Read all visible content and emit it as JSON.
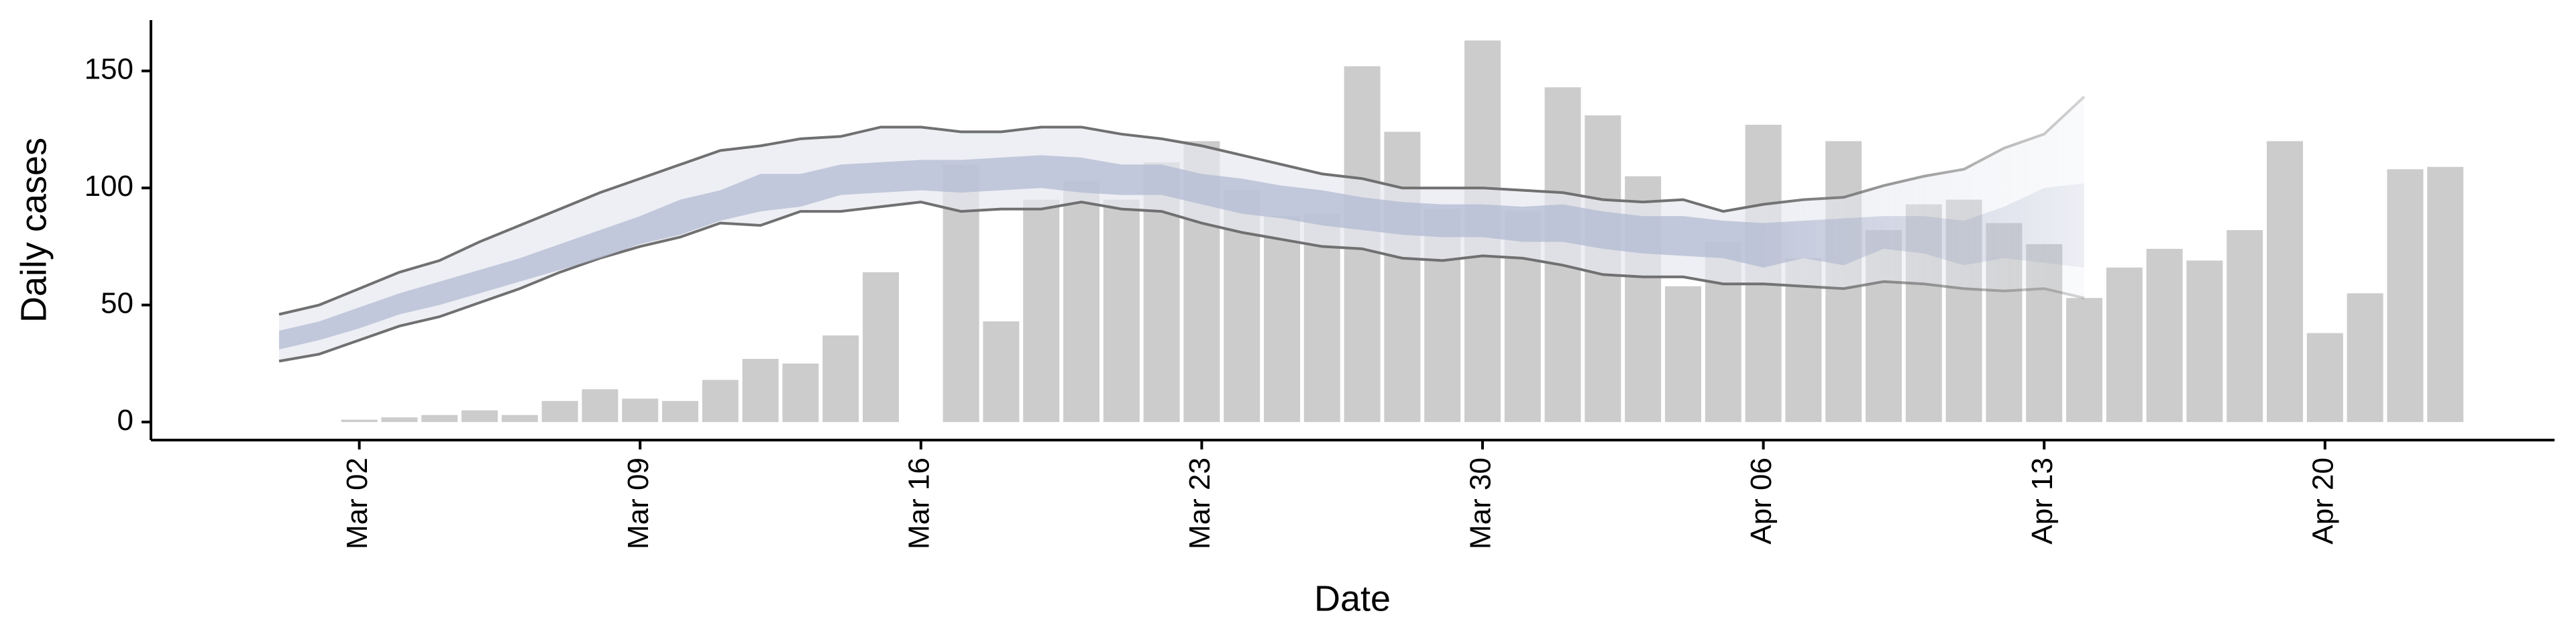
{
  "chart_data": {
    "type": "bar",
    "x_label": "Date",
    "y_label": "Daily cases",
    "categories": [
      null,
      null,
      "Mar 02",
      null,
      null,
      null,
      null,
      null,
      null,
      "Mar 09",
      null,
      null,
      null,
      null,
      null,
      null,
      "Mar 16",
      null,
      null,
      null,
      null,
      null,
      null,
      "Mar 23",
      null,
      null,
      null,
      null,
      null,
      null,
      "Mar 30",
      null,
      null,
      null,
      null,
      null,
      null,
      "Apr 06",
      null,
      null,
      null,
      null,
      null,
      null,
      "Apr 13",
      null,
      null,
      null,
      null,
      null,
      null,
      "Apr 20",
      null,
      null,
      null
    ],
    "series": [
      {
        "color": "#cccccc",
        "values": [
          null,
          null,
          1,
          2,
          3,
          5,
          3,
          9,
          14,
          10,
          9,
          18,
          27,
          25,
          37,
          64,
          null,
          110,
          43,
          95,
          103,
          95,
          111,
          120,
          99,
          88,
          89,
          152,
          124,
          91,
          163,
          90,
          143,
          131,
          105,
          58,
          77,
          127,
          70,
          120,
          82,
          93,
          95,
          85,
          76,
          53,
          66,
          74,
          69,
          82,
          120,
          38,
          55,
          108,
          109
        ]
      }
    ],
    "bands": [
      {
        "color": "#e6e8f0",
        "edge_color": "#707070",
        "upper": [
          46,
          50,
          57,
          64,
          69,
          77,
          84,
          91,
          98,
          104,
          110,
          116,
          118,
          121,
          122,
          126,
          126,
          124,
          124,
          126,
          126,
          123,
          121,
          118,
          114,
          110,
          106,
          104,
          100,
          100,
          100,
          99,
          98,
          95,
          94,
          95,
          90,
          93,
          95,
          96,
          101,
          105,
          108,
          117,
          123,
          139
        ],
        "lower": [
          26,
          29,
          35,
          41,
          45,
          51,
          57,
          64,
          70,
          75,
          79,
          85,
          84,
          90,
          90,
          92,
          94,
          90,
          91,
          91,
          94,
          91,
          90,
          85,
          81,
          78,
          75,
          74,
          70,
          69,
          71,
          70,
          67,
          63,
          62,
          62,
          59,
          59,
          58,
          57,
          60,
          59,
          57,
          56,
          57,
          53
        ]
      },
      {
        "color": "#b4bbd3",
        "upper": [
          39,
          43,
          49,
          55,
          60,
          65,
          70,
          76,
          82,
          88,
          95,
          99,
          106,
          106,
          110,
          111,
          112,
          112,
          113,
          114,
          113,
          110,
          110,
          106,
          104,
          101,
          99,
          96,
          94,
          93,
          93,
          92,
          93,
          90,
          88,
          88,
          86,
          85,
          86,
          87,
          88,
          88,
          86,
          92,
          100,
          102
        ],
        "lower": [
          31,
          35,
          40,
          46,
          50,
          55,
          60,
          65,
          70,
          76,
          80,
          86,
          90,
          92,
          97,
          98,
          99,
          98,
          99,
          100,
          98,
          97,
          97,
          93,
          89,
          87,
          84,
          82,
          80,
          79,
          79,
          77,
          77,
          74,
          72,
          71,
          70,
          66,
          70,
          67,
          74,
          72,
          67,
          70,
          68,
          66
        ]
      }
    ],
    "ylim": [
      -7.7,
      171.7
    ],
    "yticks": [
      0,
      50,
      100,
      150
    ]
  }
}
